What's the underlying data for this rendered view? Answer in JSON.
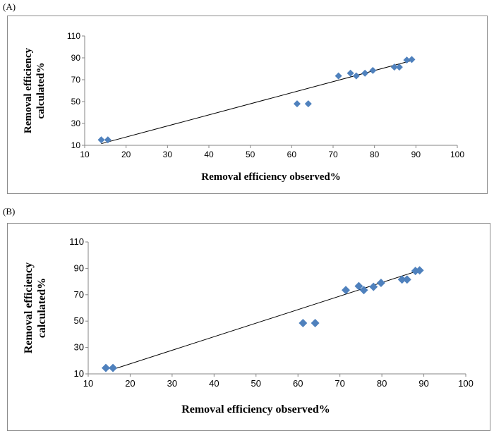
{
  "panels": [
    {
      "label": "(A)"
    },
    {
      "label": "(B)"
    }
  ],
  "chart_data": [
    {
      "type": "scatter",
      "title": "",
      "xlabel": "Removal efficiency observed%",
      "ylabel_lines": [
        "Removal efficiency",
        "calculated%"
      ],
      "xlim": [
        10,
        100
      ],
      "ylim": [
        10,
        110
      ],
      "xticks": [
        10,
        20,
        30,
        40,
        50,
        60,
        70,
        80,
        90,
        100
      ],
      "yticks": [
        10,
        30,
        50,
        70,
        90,
        110
      ],
      "grid": false,
      "legend": "none",
      "marker_color": "#4f81bd",
      "line_color": "#000000",
      "points": {
        "x": [
          14,
          15.6,
          61.3,
          64,
          71.3,
          74.2,
          75.6,
          77.7,
          79.6,
          84.8,
          86,
          87.8,
          89
        ],
        "y": [
          15,
          15,
          48,
          48,
          73.5,
          76,
          73.5,
          76,
          78.5,
          81.5,
          81.5,
          88,
          88.5
        ]
      },
      "trendline": {
        "x": [
          14,
          89
        ],
        "y": [
          11.5,
          87.5
        ]
      }
    },
    {
      "type": "scatter",
      "title": "",
      "xlabel": "Removal efficiency observed%",
      "ylabel_lines": [
        "Removal efficiency",
        "calculated%"
      ],
      "xlim": [
        10,
        100
      ],
      "ylim": [
        10,
        110
      ],
      "xticks": [
        10,
        20,
        30,
        40,
        50,
        60,
        70,
        80,
        90,
        100
      ],
      "yticks": [
        10,
        30,
        50,
        70,
        90,
        110
      ],
      "grid": false,
      "legend": "none",
      "marker_color": "#4f81bd",
      "line_color": "#000000",
      "points": {
        "x": [
          14.2,
          15.9,
          61.2,
          64.1,
          71.4,
          74.5,
          75.7,
          78,
          79.8,
          84.8,
          86,
          88,
          89
        ],
        "y": [
          14.5,
          14.5,
          48.5,
          48.5,
          73.5,
          76.5,
          73.5,
          76,
          79,
          81.5,
          81.5,
          88,
          88.5
        ]
      },
      "trendline": {
        "x": [
          15.5,
          89
        ],
        "y": [
          13,
          88.5
        ]
      }
    }
  ]
}
